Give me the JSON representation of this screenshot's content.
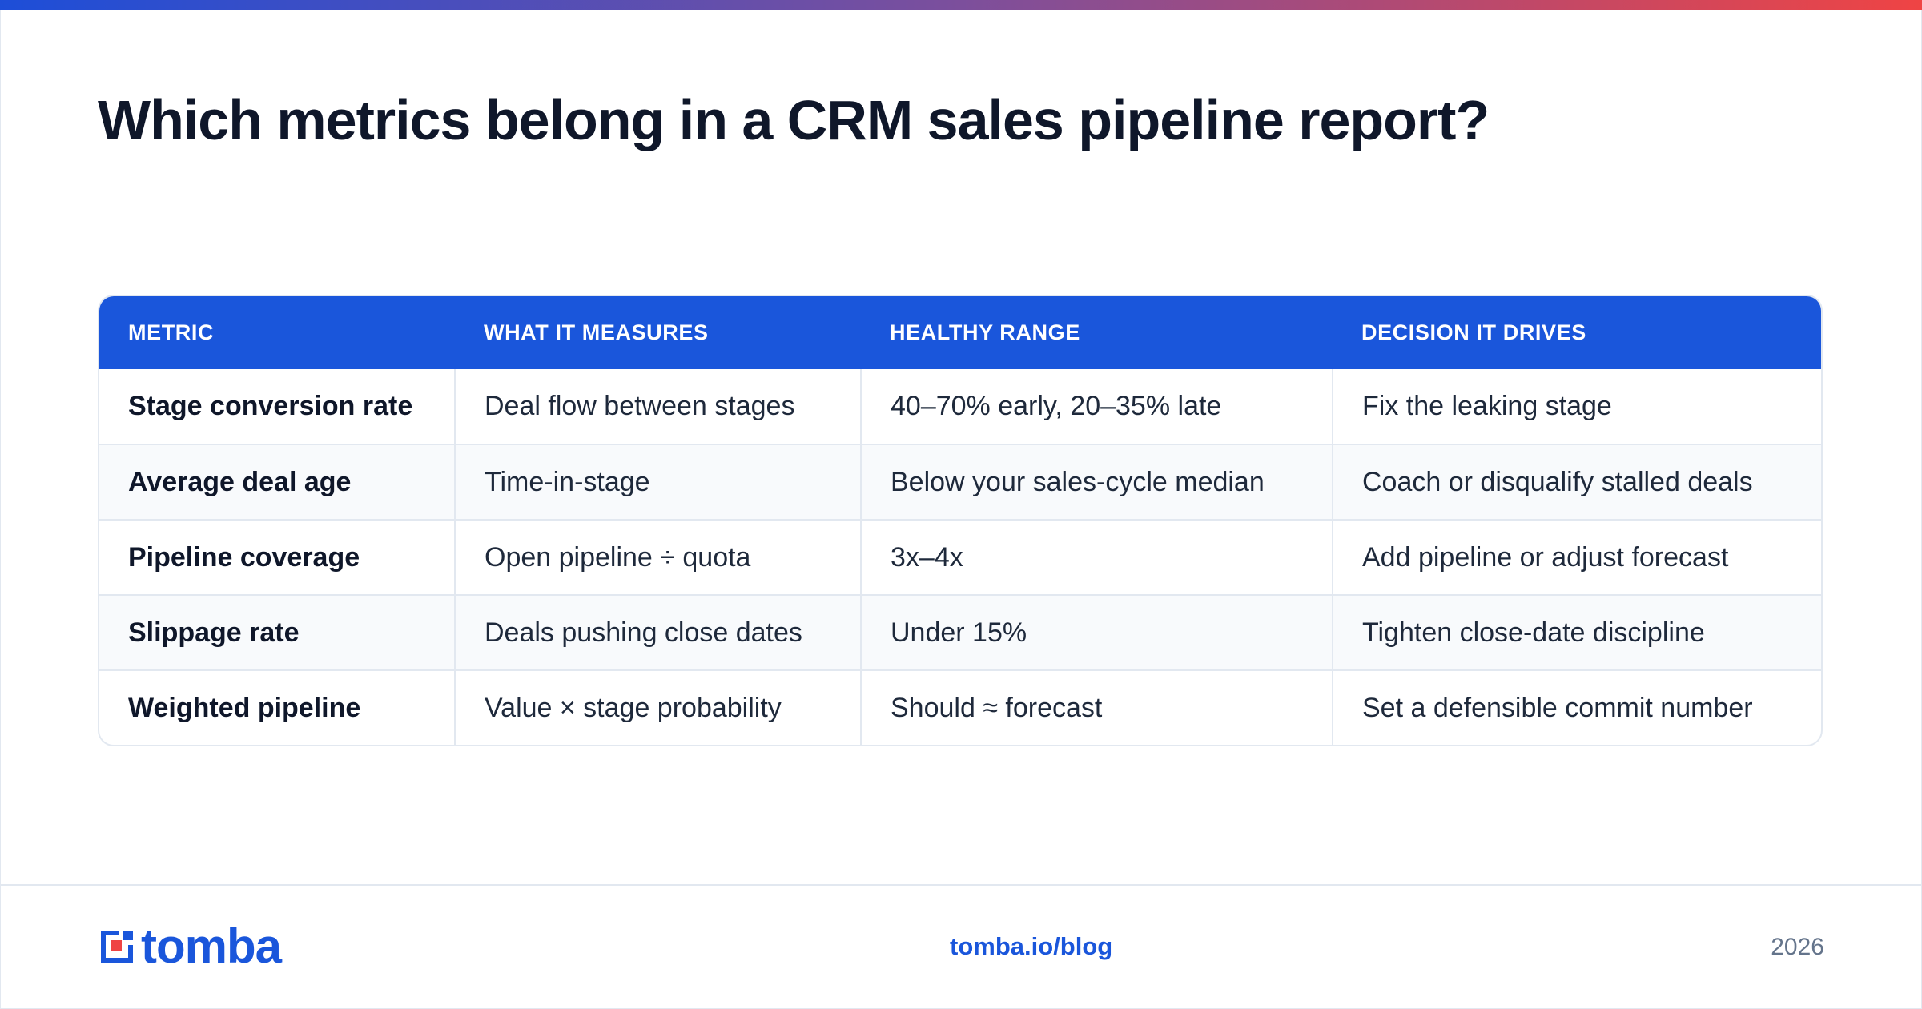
{
  "title": "Which metrics belong in a CRM sales pipeline report?",
  "colors": {
    "accent": "#1a56db",
    "gradient_start": "#1d4ed8",
    "gradient_end": "#ef4444",
    "text": "#0f172a"
  },
  "table": {
    "headers": [
      "METRIC",
      "WHAT IT MEASURES",
      "HEALTHY RANGE",
      "DECISION IT DRIVES"
    ],
    "rows": [
      [
        "Stage conversion rate",
        "Deal flow between stages",
        "40–70% early, 20–35% late",
        "Fix the leaking stage"
      ],
      [
        "Average deal age",
        "Time-in-stage",
        "Below your sales-cycle median",
        "Coach or disqualify stalled deals"
      ],
      [
        "Pipeline coverage",
        "Open pipeline ÷ quota",
        "3x–4x",
        "Add pipeline or adjust forecast"
      ],
      [
        "Slippage rate",
        "Deals pushing close dates",
        "Under 15%",
        "Tighten close-date discipline"
      ],
      [
        "Weighted pipeline",
        "Value × stage probability",
        "Should ≈ forecast",
        "Set a defensible commit number"
      ]
    ]
  },
  "footer": {
    "logo_text": "tomba",
    "logo_icon": "tomba-logo-icon",
    "link": "tomba.io/blog",
    "year": "2026"
  }
}
